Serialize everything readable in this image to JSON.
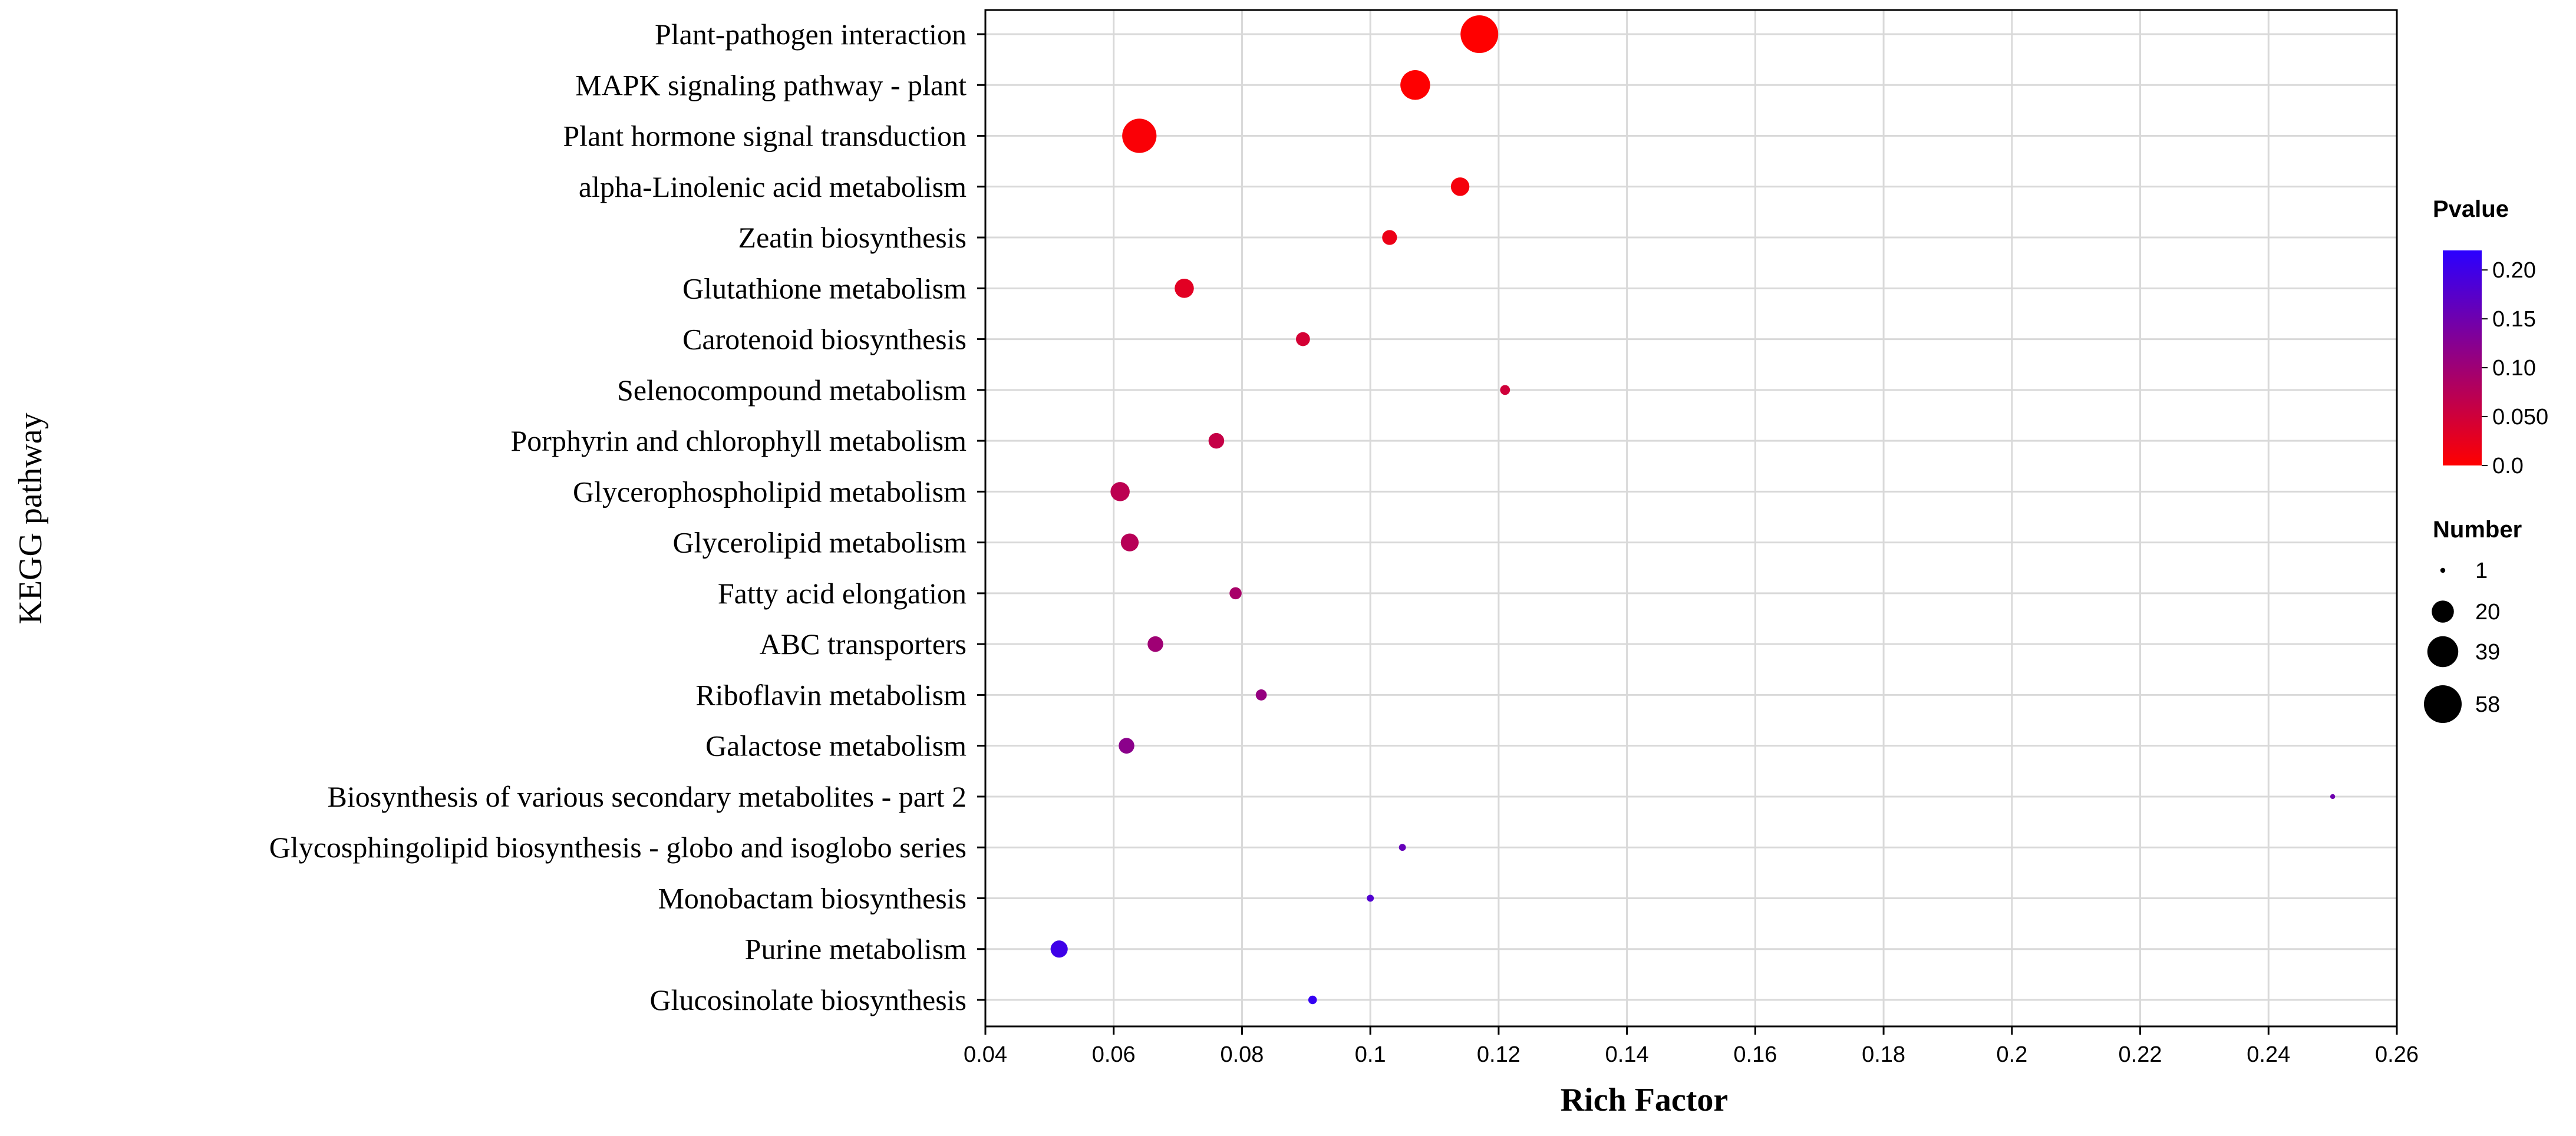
{
  "chart_data": {
    "type": "scatter",
    "subtype": "bubble",
    "title": "",
    "xlabel": "Rich Factor",
    "ylabel": "KEGG pathway",
    "xlim": [
      0.04,
      0.26
    ],
    "xticks": [
      0.04,
      0.06,
      0.08,
      0.1,
      0.12,
      0.14,
      0.16,
      0.18,
      0.2,
      0.22,
      0.24,
      0.26
    ],
    "xtick_labels": [
      "0.04",
      "0.06",
      "0.08",
      "0.1",
      "0.12",
      "0.14",
      "0.16",
      "0.18",
      "0.2",
      "0.22",
      "0.24",
      "0.26"
    ],
    "grid": true,
    "categories": [
      "Plant-pathogen interaction",
      "MAPK signaling pathway - plant",
      "Plant hormone signal transduction",
      "alpha-Linolenic acid metabolism",
      "Zeatin biosynthesis",
      "Glutathione metabolism",
      "Carotenoid biosynthesis",
      "Selenocompound metabolism",
      "Porphyrin and chlorophyll metabolism",
      "Glycerophospholipid metabolism",
      "Glycerolipid metabolism",
      "Fatty acid elongation",
      "ABC transporters",
      "Riboflavin metabolism",
      "Galactose metabolism",
      "Biosynthesis of various secondary metabolites - part 2",
      "Glycosphingolipid biosynthesis - globo and isoglobo series",
      "Monobactam biosynthesis",
      "Purine metabolism",
      "Glucosinolate biosynthesis"
    ],
    "points": [
      {
        "pathway": "Plant-pathogen interaction",
        "rich_factor": 0.117,
        "number": 58,
        "pvalue": 0.0
      },
      {
        "pathway": "MAPK signaling pathway - plant",
        "rich_factor": 0.107,
        "number": 36,
        "pvalue": 0.001
      },
      {
        "pathway": "Plant hormone signal transduction",
        "rich_factor": 0.064,
        "number": 48,
        "pvalue": 0.005
      },
      {
        "pathway": "alpha-Linolenic acid metabolism",
        "rich_factor": 0.114,
        "number": 14,
        "pvalue": 0.01
      },
      {
        "pathway": "Zeatin biosynthesis",
        "rich_factor": 0.103,
        "number": 9,
        "pvalue": 0.02
      },
      {
        "pathway": "Glutathione metabolism",
        "rich_factor": 0.071,
        "number": 15,
        "pvalue": 0.03
      },
      {
        "pathway": "Carotenoid biosynthesis",
        "rich_factor": 0.0895,
        "number": 8,
        "pvalue": 0.045
      },
      {
        "pathway": "Selenocompound metabolism",
        "rich_factor": 0.121,
        "number": 4,
        "pvalue": 0.05
      },
      {
        "pathway": "Porphyrin and chlorophyll metabolism",
        "rich_factor": 0.076,
        "number": 10,
        "pvalue": 0.06
      },
      {
        "pathway": "Glycerophospholipid metabolism",
        "rich_factor": 0.061,
        "number": 15,
        "pvalue": 0.07
      },
      {
        "pathway": "Glycerolipid metabolism",
        "rich_factor": 0.0625,
        "number": 13,
        "pvalue": 0.075
      },
      {
        "pathway": "Fatty acid elongation",
        "rich_factor": 0.079,
        "number": 6,
        "pvalue": 0.09
      },
      {
        "pathway": "ABC transporters",
        "rich_factor": 0.0665,
        "number": 10,
        "pvalue": 0.1
      },
      {
        "pathway": "Riboflavin metabolism",
        "rich_factor": 0.083,
        "number": 5,
        "pvalue": 0.11
      },
      {
        "pathway": "Galactose metabolism",
        "rich_factor": 0.062,
        "number": 10,
        "pvalue": 0.12
      },
      {
        "pathway": "Biosynthesis of various secondary metabolites - part 2",
        "rich_factor": 0.25,
        "number": 1,
        "pvalue": 0.15
      },
      {
        "pathway": "Glycosphingolipid biosynthesis - globo and isoglobo series",
        "rich_factor": 0.105,
        "number": 2,
        "pvalue": 0.16
      },
      {
        "pathway": "Monobactam biosynthesis",
        "rich_factor": 0.1,
        "number": 2,
        "pvalue": 0.18
      },
      {
        "pathway": "Purine metabolism",
        "rich_factor": 0.0515,
        "number": 12,
        "pvalue": 0.2
      },
      {
        "pathway": "Glucosinolate biosynthesis",
        "rich_factor": 0.091,
        "number": 3,
        "pvalue": 0.21
      }
    ],
    "color_legend": {
      "title": "Pvalue",
      "min": 0.0,
      "max": 0.22,
      "low_color": "#ff0000",
      "high_color": "#2b00ff",
      "ticks": [
        0.0,
        0.05,
        0.1,
        0.15,
        0.2
      ],
      "tick_labels": [
        "0.0",
        "0.050",
        "0.10",
        "0.15",
        "0.20"
      ]
    },
    "size_legend": {
      "title": "Number",
      "values": [
        1,
        20,
        39,
        58
      ],
      "labels": [
        "1",
        "20",
        "39",
        "58"
      ]
    },
    "legend_position": "right"
  }
}
